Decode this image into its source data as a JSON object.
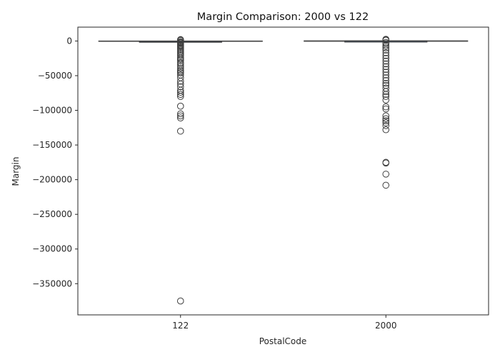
{
  "chart_data": {
    "type": "box",
    "title": "Margin Comparison: 2000 vs 122",
    "xlabel": "PostalCode",
    "ylabel": "Margin",
    "categories": [
      "122",
      "2000"
    ],
    "ylim": [
      -395000,
      20000
    ],
    "yticks": [
      0,
      -50000,
      -100000,
      -150000,
      -200000,
      -250000,
      -300000,
      -350000
    ],
    "ytick_labels": [
      "0",
      "−50000",
      "−100000",
      "−150000",
      "−200000",
      "−250000",
      "−300000",
      "−350000"
    ],
    "grid": false,
    "series": [
      {
        "category": "122",
        "whisker_low": -500,
        "q1": -400,
        "median": -300,
        "q3": -250,
        "whisker_high": 0,
        "outliers": [
          -375000,
          -130000,
          -111000,
          -108000,
          -105000,
          -94000,
          -80000,
          -77000,
          -74000,
          -71000,
          -66000,
          -62000,
          -58000,
          -53000,
          -49000,
          -46000,
          -44000,
          -42000,
          -39000,
          -36000,
          -33000,
          -31000,
          -28000,
          -26000,
          -24000,
          -21000,
          -19000,
          -17000,
          -15000,
          -13000,
          -11000,
          -9000,
          -7500,
          -6000,
          -4500,
          -3000,
          -2000,
          -1000,
          2000,
          1500,
          800
        ]
      },
      {
        "category": "2000",
        "whisker_low": -300,
        "q1": -100,
        "median": 0,
        "q3": 80,
        "whisker_high": 200,
        "outliers": [
          -208000,
          -192000,
          -176000,
          -175000,
          -128000,
          -122000,
          -118000,
          -115000,
          -112000,
          -108000,
          -98000,
          -95000,
          -85000,
          -80000,
          -77000,
          -73000,
          -68000,
          -64000,
          -61000,
          -57000,
          -53000,
          -49000,
          -45000,
          -41000,
          -37000,
          -33000,
          -29000,
          -25000,
          -21000,
          -17000,
          -13000,
          -10000,
          -7000,
          -4000,
          -2000,
          2500,
          2000,
          1500,
          1000
        ]
      }
    ]
  }
}
